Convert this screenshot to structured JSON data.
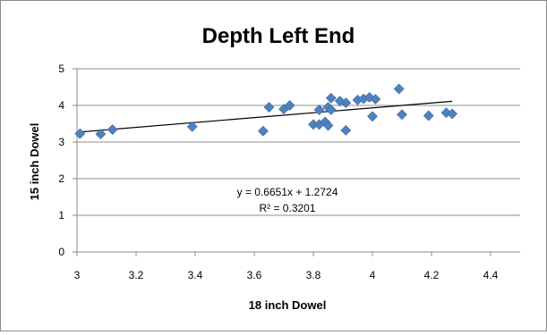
{
  "chart_data": {
    "type": "scatter",
    "title": "Depth Left End",
    "xlabel": "18 inch Dowel",
    "ylabel": "15 inch Dowel",
    "xlim": [
      3,
      4.5
    ],
    "ylim": [
      0,
      5
    ],
    "x_ticks": [
      "3",
      "3.2",
      "3.4",
      "3.6",
      "3.8",
      "4",
      "4.2",
      "4.4"
    ],
    "y_ticks": [
      "0",
      "1",
      "2",
      "3",
      "4",
      "5"
    ],
    "grid": "horizontal",
    "legend": "none",
    "marker_color": "#4f81bd",
    "trendline": {
      "type": "linear",
      "slope": 0.6651,
      "intercept": 1.2724,
      "equation": "y = 0.6651x + 1.2724",
      "r_squared": "R² = 0.3201",
      "color": "#000000"
    },
    "points": [
      {
        "x": 3.01,
        "y": 3.23
      },
      {
        "x": 3.08,
        "y": 3.22
      },
      {
        "x": 3.12,
        "y": 3.34
      },
      {
        "x": 3.39,
        "y": 3.42
      },
      {
        "x": 3.63,
        "y": 3.3
      },
      {
        "x": 3.65,
        "y": 3.95
      },
      {
        "x": 3.7,
        "y": 3.9
      },
      {
        "x": 3.72,
        "y": 4.0
      },
      {
        "x": 3.8,
        "y": 3.48
      },
      {
        "x": 3.82,
        "y": 3.88
      },
      {
        "x": 3.82,
        "y": 3.48
      },
      {
        "x": 3.84,
        "y": 3.55
      },
      {
        "x": 3.85,
        "y": 3.45
      },
      {
        "x": 3.85,
        "y": 3.95
      },
      {
        "x": 3.86,
        "y": 4.2
      },
      {
        "x": 3.86,
        "y": 3.88
      },
      {
        "x": 3.89,
        "y": 4.12
      },
      {
        "x": 3.91,
        "y": 4.07
      },
      {
        "x": 3.91,
        "y": 3.32
      },
      {
        "x": 3.95,
        "y": 4.15
      },
      {
        "x": 3.97,
        "y": 4.18
      },
      {
        "x": 3.99,
        "y": 4.22
      },
      {
        "x": 4.0,
        "y": 3.7
      },
      {
        "x": 4.01,
        "y": 4.17
      },
      {
        "x": 4.09,
        "y": 4.45
      },
      {
        "x": 4.1,
        "y": 3.75
      },
      {
        "x": 4.19,
        "y": 3.72
      },
      {
        "x": 4.25,
        "y": 3.8
      },
      {
        "x": 4.27,
        "y": 3.77
      }
    ]
  }
}
